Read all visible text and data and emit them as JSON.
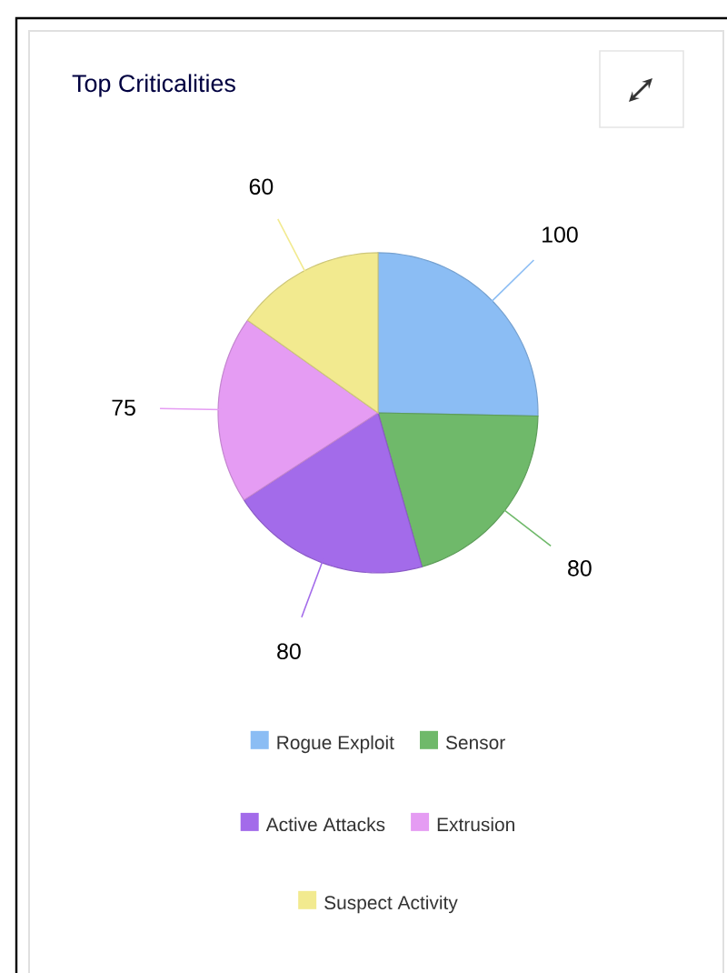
{
  "chart_data": {
    "type": "pie",
    "title": "Top Criticalities",
    "categories": [
      "Rogue Exploit",
      "Sensor",
      "Active Attacks",
      "Extrusion",
      "Suspect Activity"
    ],
    "values": [
      100,
      80,
      80,
      75,
      60
    ],
    "colors": [
      "#8bbdf4",
      "#6fb96a",
      "#a36bea",
      "#e59cf3",
      "#f2ea8f"
    ],
    "data_labels": true,
    "legend": "bottom"
  }
}
